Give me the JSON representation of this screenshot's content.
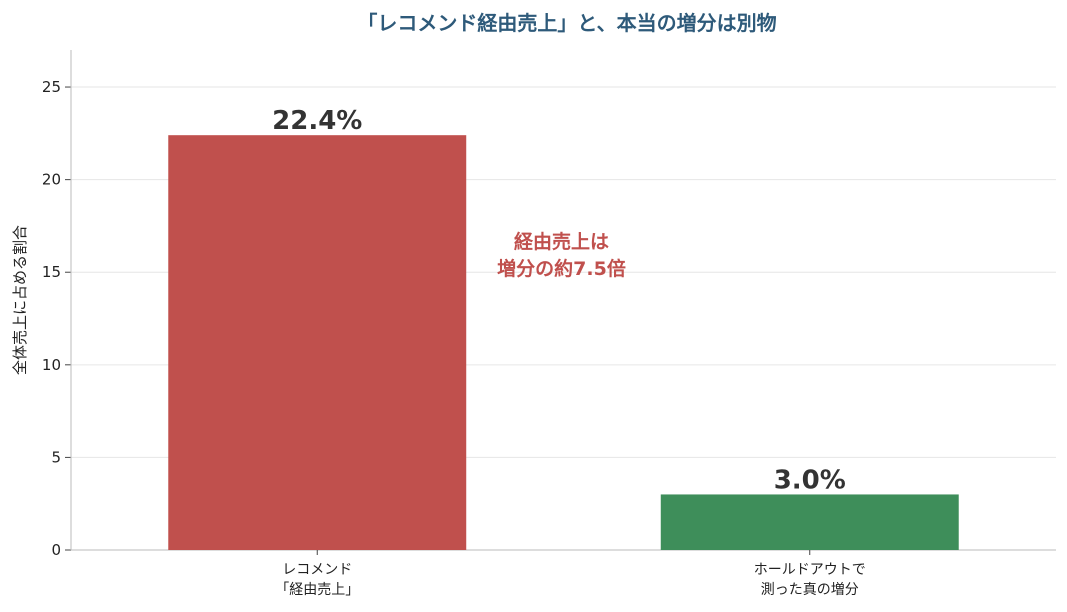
{
  "chart_data": {
    "type": "bar",
    "title": "「レコメンド経由売上」と、本当の増分は別物",
    "xlabel": "",
    "ylabel": "全体売上に占める割合",
    "ylim": [
      0,
      27
    ],
    "yticks": [
      0,
      5,
      10,
      15,
      20,
      25
    ],
    "ytick_labels": [
      "0",
      "5",
      "10",
      "15",
      "20",
      "25"
    ],
    "grid": true,
    "categories": [
      [
        "レコメンド",
        "「経由売上」"
      ],
      [
        "ホールドアウトで",
        "測った真の増分"
      ]
    ],
    "values": [
      22.4,
      3.0
    ],
    "value_labels": [
      "22.4%",
      "3.0%"
    ],
    "colors": [
      "#c0504d",
      "#3e8e5a"
    ],
    "annotation": [
      "経由売上は",
      "増分の約7.5倍"
    ],
    "annotation_color": "#c0504d",
    "title_color": "#2e5a7a"
  }
}
